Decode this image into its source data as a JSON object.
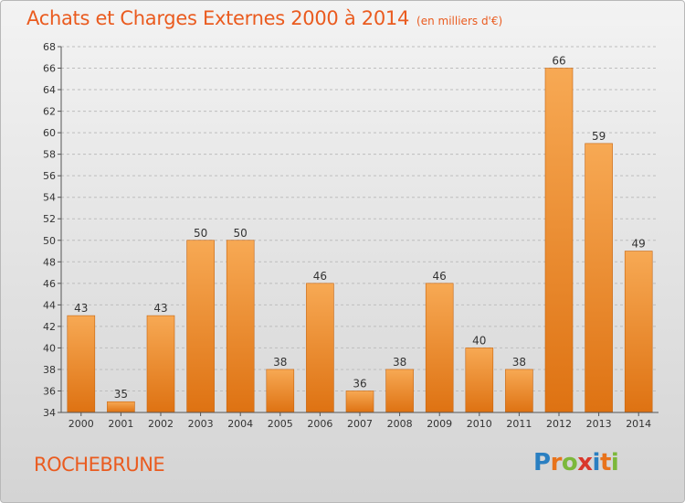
{
  "title": "Achats et Charges Externes 2000 à 2014",
  "subtitle": "(en milliers d'€)",
  "location": "ROCHEBRUNE",
  "logo": {
    "letters": [
      "P",
      "r",
      "o",
      "x",
      "i",
      "t",
      "i"
    ],
    "colors": [
      "#2a7fc1",
      "#e8731b",
      "#7cb83b",
      "#d9372b",
      "#2a7fc1",
      "#e8731b",
      "#7cb83b"
    ]
  },
  "colors": {
    "title": "#ea5b1f",
    "bar_light": "#f6a64f",
    "bar_dark": "#df7414"
  },
  "chart_data": {
    "type": "bar",
    "title": "Achats et Charges Externes 2000 à 2014",
    "subtitle": "(en milliers d'€)",
    "categories": [
      "2000",
      "2001",
      "2002",
      "2003",
      "2004",
      "2005",
      "2006",
      "2007",
      "2008",
      "2009",
      "2010",
      "2011",
      "2012",
      "2013",
      "2014"
    ],
    "values": [
      43,
      35,
      43,
      50,
      50,
      38,
      46,
      36,
      38,
      46,
      40,
      38,
      66,
      59,
      49
    ],
    "ylim": [
      34,
      68
    ],
    "yticks": [
      34,
      36,
      38,
      40,
      42,
      44,
      46,
      48,
      50,
      52,
      54,
      56,
      58,
      60,
      62,
      64,
      66,
      68
    ],
    "grid": true,
    "xlabel": "",
    "ylabel": ""
  }
}
